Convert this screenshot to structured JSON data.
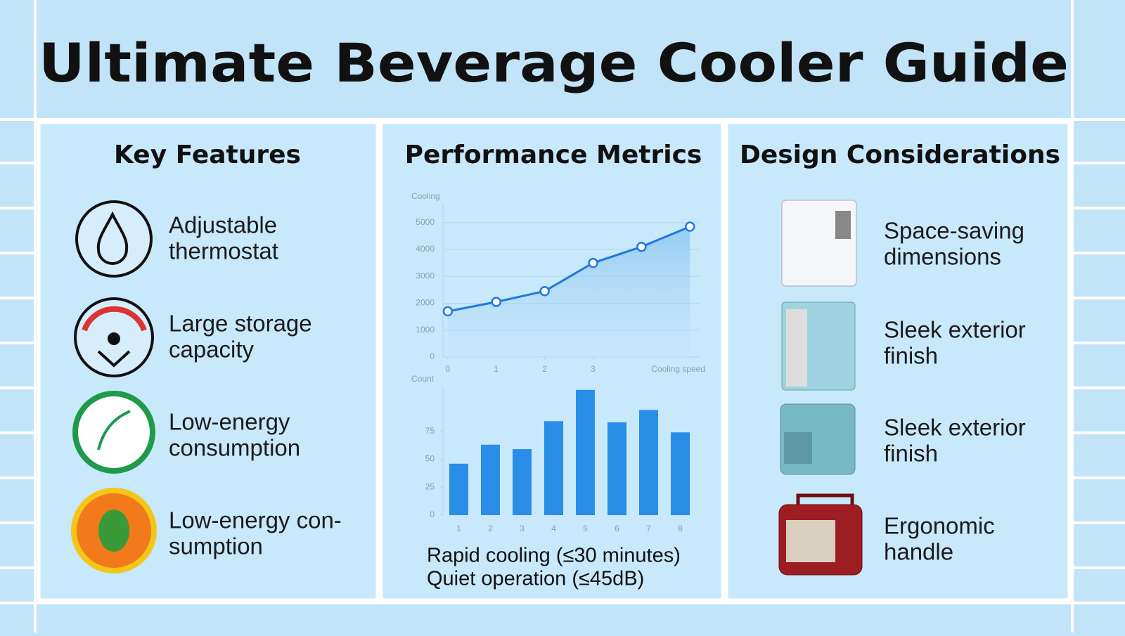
{
  "title": "Ultimate Beverage Cooler Guide",
  "panels": [
    {
      "heading": "Key Features",
      "items": [
        [
          "Adjustable",
          "thermostat"
        ],
        [
          "Large storage",
          "capacity"
        ],
        [
          "Low-energy",
          "consumption"
        ],
        [
          "Low-energy con-",
          "sumption"
        ]
      ]
    },
    {
      "heading": "Performance Metrics",
      "notes": [
        "Rapid cooling (≤30 minutes)",
        "Quiet operation (≤45dB)"
      ]
    },
    {
      "heading": "Design Considerations",
      "items": [
        [
          "Space-saving",
          "dimensions"
        ],
        [
          "Sleek exterior",
          "finish"
        ],
        [
          "Sleek exterior",
          "finish"
        ],
        [
          "Ergonomic",
          "handle"
        ]
      ]
    }
  ],
  "chart_data": [
    {
      "type": "line",
      "ylabel": "Cooling",
      "xlabel": "Cooling speed",
      "color": "#1f78e0",
      "x": [
        0,
        1,
        2,
        3,
        4,
        5
      ],
      "values": [
        1700,
        2050,
        2450,
        3500,
        4100,
        4850
      ],
      "xlim": [
        -0.1,
        5.2
      ],
      "xticks": [
        0,
        1,
        2,
        3
      ],
      "ylim": [
        0,
        5700
      ],
      "yticks": [
        0,
        1000,
        2000,
        3000,
        4000,
        5000
      ],
      "grid": true
    },
    {
      "type": "bar",
      "ylabel": "Count",
      "color": "#2a8de8",
      "categories": [
        "1",
        "2",
        "3",
        "4",
        "5",
        "6",
        "7",
        "8"
      ],
      "values": [
        46,
        63,
        59,
        84,
        112,
        83,
        94,
        74
      ],
      "ylim": [
        0,
        115
      ],
      "yticks": [
        0,
        25,
        50,
        75
      ],
      "grid": false
    }
  ]
}
